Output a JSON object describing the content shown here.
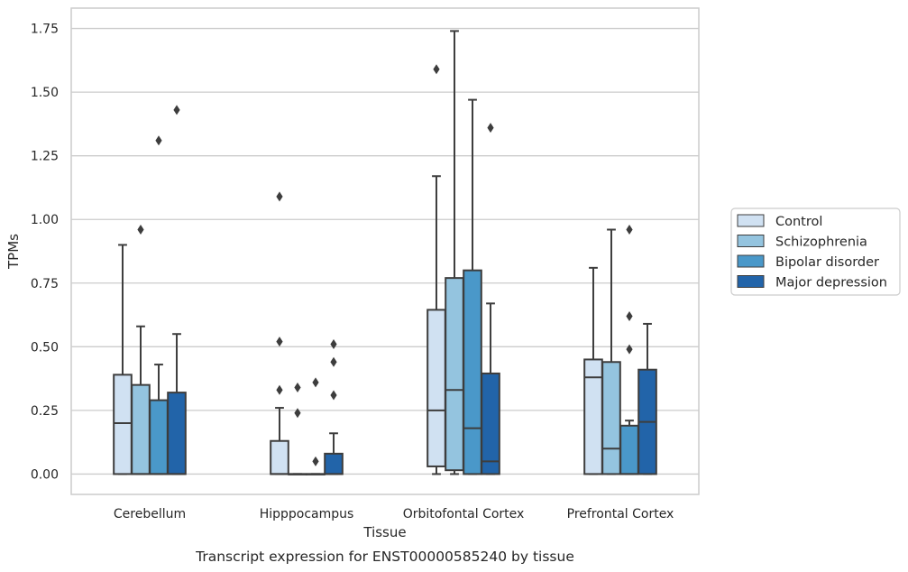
{
  "chart_data": {
    "type": "box",
    "caption": "Transcript expression for ENST00000585240 by tissue",
    "xlabel": "Tissue",
    "ylabel": "TPMs",
    "ylim": [
      -0.08,
      1.83
    ],
    "yticks": [
      0.0,
      0.25,
      0.5,
      0.75,
      1.0,
      1.25,
      1.5,
      1.75
    ],
    "ytick_labels": [
      "0.00",
      "0.25",
      "0.50",
      "0.75",
      "1.00",
      "1.25",
      "1.50",
      "1.75"
    ],
    "grid": true,
    "legend_position": "right",
    "categories": [
      "Cerebellum",
      "Hipppocampus",
      "Orbitofontal Cortex",
      "Prefrontal Cortex"
    ],
    "series": [
      {
        "name": "Control",
        "color": "#d0e1f2",
        "boxes": [
          {
            "whisker_low": 0.0,
            "q1": 0.0,
            "median": 0.2,
            "q3": 0.39,
            "whisker_high": 0.9,
            "outliers": []
          },
          {
            "whisker_low": 0.0,
            "q1": 0.0,
            "median": 0.0,
            "q3": 0.13,
            "whisker_high": 0.26,
            "outliers": [
              0.33,
              0.52,
              1.09
            ]
          },
          {
            "whisker_low": 0.0,
            "q1": 0.03,
            "median": 0.25,
            "q3": 0.645,
            "whisker_high": 1.17,
            "outliers": [
              1.59
            ]
          },
          {
            "whisker_low": 0.0,
            "q1": 0.0,
            "median": 0.38,
            "q3": 0.45,
            "whisker_high": 0.81,
            "outliers": []
          }
        ]
      },
      {
        "name": "Schizophrenia",
        "color": "#94c4df",
        "boxes": [
          {
            "whisker_low": 0.0,
            "q1": 0.0,
            "median": 0.0,
            "q3": 0.35,
            "whisker_high": 0.58,
            "outliers": [
              0.96
            ]
          },
          {
            "whisker_low": 0.0,
            "q1": 0.0,
            "median": 0.0,
            "q3": 0.0,
            "whisker_high": 0.0,
            "outliers": [
              0.24,
              0.34
            ]
          },
          {
            "whisker_low": 0.0,
            "q1": 0.015,
            "median": 0.33,
            "q3": 0.77,
            "whisker_high": 1.74,
            "outliers": []
          },
          {
            "whisker_low": 0.0,
            "q1": 0.0,
            "median": 0.1,
            "q3": 0.44,
            "whisker_high": 0.96,
            "outliers": []
          }
        ]
      },
      {
        "name": "Bipolar disorder",
        "color": "#4a98c9",
        "boxes": [
          {
            "whisker_low": 0.0,
            "q1": 0.0,
            "median": 0.0,
            "q3": 0.29,
            "whisker_high": 0.43,
            "outliers": [
              1.31
            ]
          },
          {
            "whisker_low": 0.0,
            "q1": 0.0,
            "median": 0.0,
            "q3": 0.0,
            "whisker_high": 0.0,
            "outliers": [
              0.05,
              0.36
            ]
          },
          {
            "whisker_low": 0.0,
            "q1": 0.0,
            "median": 0.18,
            "q3": 0.8,
            "whisker_high": 1.47,
            "outliers": []
          },
          {
            "whisker_low": 0.0,
            "q1": 0.0,
            "median": 0.0,
            "q3": 0.19,
            "whisker_high": 0.21,
            "outliers": [
              0.49,
              0.62,
              0.96
            ]
          }
        ]
      },
      {
        "name": "Major depression",
        "color": "#2264a9",
        "boxes": [
          {
            "whisker_low": 0.0,
            "q1": 0.0,
            "median": 0.0,
            "q3": 0.32,
            "whisker_high": 0.55,
            "outliers": [
              1.43
            ]
          },
          {
            "whisker_low": 0.0,
            "q1": 0.0,
            "median": 0.0,
            "q3": 0.08,
            "whisker_high": 0.16,
            "outliers": [
              0.31,
              0.44,
              0.51
            ]
          },
          {
            "whisker_low": 0.0,
            "q1": 0.0,
            "median": 0.05,
            "q3": 0.395,
            "whisker_high": 0.67,
            "outliers": [
              1.36
            ]
          },
          {
            "whisker_low": 0.0,
            "q1": 0.0,
            "median": 0.205,
            "q3": 0.41,
            "whisker_high": 0.59,
            "outliers": []
          }
        ]
      }
    ]
  }
}
